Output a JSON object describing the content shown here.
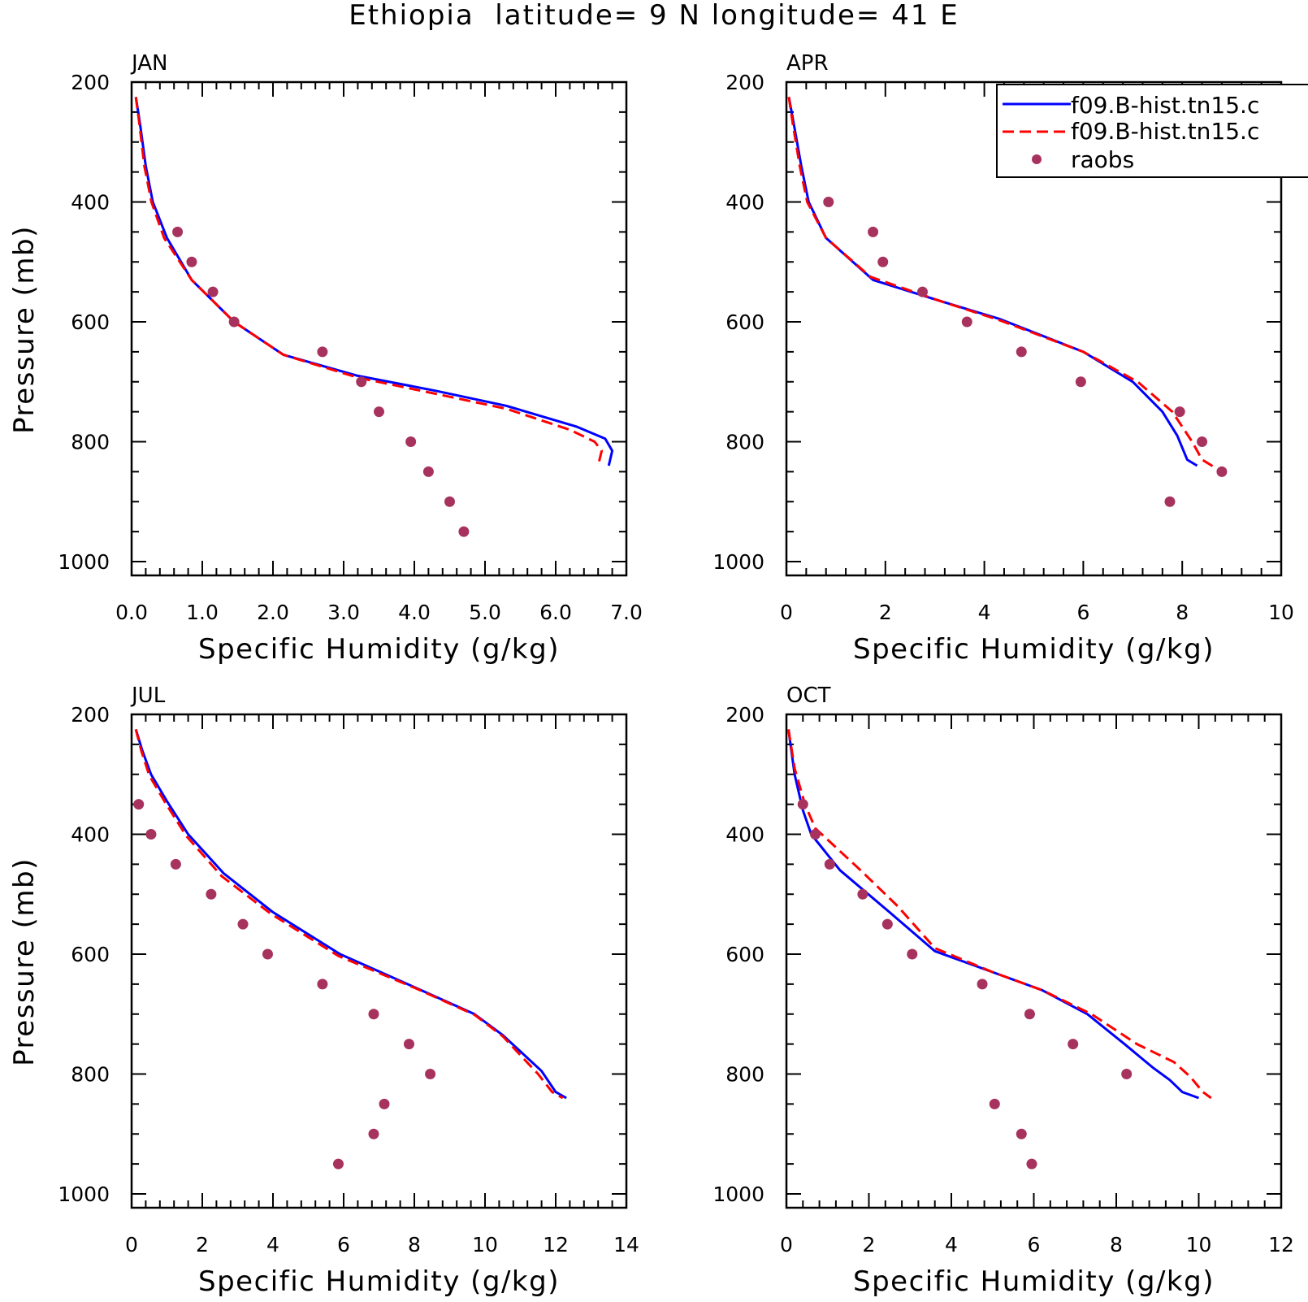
{
  "title": "Ethiopia  latitude= 9 N longitude= 41 E",
  "legend": {
    "entries": [
      {
        "label": "f09.B-hist.tn15.c",
        "color": "#0000ff",
        "style": "solid"
      },
      {
        "label": "f09.B-hist.tn15.c",
        "color": "#ff0000",
        "style": "dashed"
      },
      {
        "label": "raobs",
        "color": "#a8325e",
        "style": "marker"
      }
    ]
  },
  "colors": {
    "series1": "#0000ff",
    "series2": "#ff0000",
    "raobs": "#a8325e"
  },
  "chart_data": [
    {
      "type": "line",
      "panel": "JAN",
      "xlabel": "Specific Humidity (g/kg)",
      "ylabel": "Pressure (mb)",
      "xlim": [
        0,
        7
      ],
      "ylim": [
        1000,
        200
      ],
      "xticks": [
        0,
        1,
        2,
        3,
        4,
        5,
        6,
        7
      ],
      "xtick_labels": [
        "0.0",
        "1.0",
        "2.0",
        "3.0",
        "4.0",
        "5.0",
        "6.0",
        "7.0"
      ],
      "yticks": [
        200,
        400,
        600,
        800,
        1000
      ],
      "ytick_labels": [
        "200",
        "400",
        "600",
        "800",
        "1000"
      ],
      "series": [
        {
          "values": [
            [
              0.06,
              225
            ],
            [
              0.12,
              270
            ],
            [
              0.2,
              340
            ],
            [
              0.3,
              400
            ],
            [
              0.5,
              460
            ],
            [
              0.85,
              530
            ],
            [
              1.45,
              600
            ],
            [
              2.15,
              655
            ],
            [
              3.2,
              690
            ],
            [
              4.3,
              715
            ],
            [
              5.3,
              740
            ],
            [
              6.3,
              775
            ],
            [
              6.7,
              795
            ],
            [
              6.8,
              815
            ],
            [
              6.75,
              840
            ]
          ]
        },
        {
          "values": [
            [
              0.06,
              225
            ],
            [
              0.11,
              270
            ],
            [
              0.18,
              340
            ],
            [
              0.28,
              400
            ],
            [
              0.46,
              460
            ],
            [
              0.85,
              530
            ],
            [
              1.45,
              600
            ],
            [
              2.15,
              655
            ],
            [
              3.2,
              693
            ],
            [
              4.3,
              720
            ],
            [
              5.3,
              745
            ],
            [
              6.2,
              780
            ],
            [
              6.55,
              800
            ],
            [
              6.65,
              815
            ],
            [
              6.6,
              840
            ]
          ]
        },
        {
          "values": [
            [
              0.65,
              450
            ],
            [
              0.85,
              500
            ],
            [
              1.15,
              550
            ],
            [
              1.45,
              600
            ],
            [
              2.7,
              650
            ],
            [
              3.25,
              700
            ],
            [
              3.5,
              750
            ],
            [
              3.95,
              800
            ],
            [
              4.2,
              850
            ],
            [
              4.5,
              900
            ],
            [
              4.7,
              950
            ]
          ]
        }
      ]
    },
    {
      "type": "line",
      "panel": "APR",
      "xlabel": "Specific Humidity (g/kg)",
      "ylabel": "",
      "xlim": [
        0,
        10
      ],
      "ylim": [
        1000,
        200
      ],
      "xticks": [
        0,
        2,
        4,
        6,
        8,
        10
      ],
      "xtick_labels": [
        "0",
        "2",
        "4",
        "6",
        "8",
        "10"
      ],
      "yticks": [
        200,
        400,
        600,
        800,
        1000
      ],
      "ytick_labels": [
        "200",
        "400",
        "600",
        "800",
        "1000"
      ],
      "series": [
        {
          "values": [
            [
              0.05,
              225
            ],
            [
              0.15,
              270
            ],
            [
              0.3,
              340
            ],
            [
              0.45,
              400
            ],
            [
              0.8,
              460
            ],
            [
              1.75,
              530
            ],
            [
              3.1,
              565
            ],
            [
              4.3,
              595
            ],
            [
              6.0,
              650
            ],
            [
              7.0,
              700
            ],
            [
              7.6,
              750
            ],
            [
              7.9,
              790
            ],
            [
              8.1,
              830
            ],
            [
              8.3,
              840
            ]
          ]
        },
        {
          "values": [
            [
              0.05,
              225
            ],
            [
              0.13,
              270
            ],
            [
              0.27,
              340
            ],
            [
              0.42,
              400
            ],
            [
              0.8,
              460
            ],
            [
              1.7,
              525
            ],
            [
              3.1,
              565
            ],
            [
              4.3,
              597
            ],
            [
              6.0,
              650
            ],
            [
              7.1,
              700
            ],
            [
              7.8,
              750
            ],
            [
              8.2,
              800
            ],
            [
              8.4,
              830
            ],
            [
              8.7,
              845
            ]
          ]
        },
        {
          "values": [
            [
              0.85,
              400
            ],
            [
              1.75,
              450
            ],
            [
              1.95,
              500
            ],
            [
              2.75,
              550
            ],
            [
              3.65,
              600
            ],
            [
              4.75,
              650
            ],
            [
              5.95,
              700
            ],
            [
              7.95,
              750
            ],
            [
              8.4,
              800
            ],
            [
              8.8,
              850
            ],
            [
              7.75,
              900
            ]
          ]
        }
      ]
    },
    {
      "type": "line",
      "panel": "JUL",
      "xlabel": "Specific Humidity (g/kg)",
      "ylabel": "Pressure (mb)",
      "xlim": [
        0,
        14
      ],
      "ylim": [
        1000,
        200
      ],
      "xticks": [
        0,
        2,
        4,
        6,
        8,
        10,
        12,
        14
      ],
      "xtick_labels": [
        "0",
        "2",
        "4",
        "6",
        "8",
        "10",
        "12",
        "14"
      ],
      "yticks": [
        200,
        400,
        600,
        800,
        1000
      ],
      "ytick_labels": [
        "200",
        "400",
        "600",
        "800",
        "1000"
      ],
      "series": [
        {
          "values": [
            [
              0.12,
              225
            ],
            [
              0.3,
              260
            ],
            [
              0.55,
              300
            ],
            [
              1.0,
              345
            ],
            [
              1.6,
              400
            ],
            [
              2.6,
              465
            ],
            [
              4.0,
              530
            ],
            [
              5.9,
              600
            ],
            [
              8.0,
              655
            ],
            [
              9.7,
              700
            ],
            [
              10.5,
              735
            ],
            [
              11.6,
              795
            ],
            [
              12.0,
              830
            ],
            [
              12.3,
              840
            ]
          ]
        },
        {
          "values": [
            [
              0.12,
              225
            ],
            [
              0.28,
              262
            ],
            [
              0.5,
              302
            ],
            [
              0.95,
              347
            ],
            [
              1.55,
              403
            ],
            [
              2.55,
              470
            ],
            [
              3.95,
              533
            ],
            [
              5.85,
              603
            ],
            [
              8.0,
              656
            ],
            [
              9.7,
              701
            ],
            [
              10.5,
              737
            ],
            [
              11.5,
              800
            ],
            [
              11.9,
              830
            ],
            [
              12.2,
              840
            ]
          ]
        },
        {
          "values": [
            [
              0.2,
              350
            ],
            [
              0.55,
              400
            ],
            [
              1.25,
              450
            ],
            [
              2.25,
              500
            ],
            [
              3.15,
              550
            ],
            [
              3.85,
              600
            ],
            [
              5.4,
              650
            ],
            [
              6.85,
              700
            ],
            [
              7.85,
              750
            ],
            [
              8.45,
              800
            ],
            [
              7.15,
              850
            ],
            [
              6.85,
              900
            ],
            [
              5.85,
              950
            ]
          ]
        }
      ]
    },
    {
      "type": "line",
      "panel": "OCT",
      "xlabel": "Specific Humidity (g/kg)",
      "ylabel": "",
      "xlim": [
        0,
        12
      ],
      "ylim": [
        1000,
        200
      ],
      "xticks": [
        0,
        2,
        4,
        6,
        8,
        10,
        12
      ],
      "xtick_labels": [
        "0",
        "2",
        "4",
        "6",
        "8",
        "10",
        "12"
      ],
      "yticks": [
        200,
        400,
        600,
        800,
        1000
      ],
      "ytick_labels": [
        "200",
        "400",
        "600",
        "800",
        "1000"
      ],
      "series": [
        {
          "values": [
            [
              0.05,
              225
            ],
            [
              0.2,
              300
            ],
            [
              0.4,
              360
            ],
            [
              0.6,
              400
            ],
            [
              1.3,
              460
            ],
            [
              2.5,
              530
            ],
            [
              3.6,
              595
            ],
            [
              5.0,
              630
            ],
            [
              6.2,
              660
            ],
            [
              7.3,
              700
            ],
            [
              8.2,
              750
            ],
            [
              8.9,
              790
            ],
            [
              9.3,
              810
            ],
            [
              9.6,
              830
            ],
            [
              10.0,
              840
            ]
          ]
        },
        {
          "values": [
            [
              0.05,
              225
            ],
            [
              0.2,
              290
            ],
            [
              0.45,
              350
            ],
            [
              0.7,
              390
            ],
            [
              1.8,
              460
            ],
            [
              2.7,
              520
            ],
            [
              3.6,
              590
            ],
            [
              5.0,
              630
            ],
            [
              6.2,
              660
            ],
            [
              7.4,
              700
            ],
            [
              8.5,
              750
            ],
            [
              9.4,
              780
            ],
            [
              9.8,
              805
            ],
            [
              10.1,
              830
            ],
            [
              10.3,
              840
            ]
          ]
        },
        {
          "values": [
            [
              0.4,
              350
            ],
            [
              0.7,
              400
            ],
            [
              1.05,
              450
            ],
            [
              1.85,
              500
            ],
            [
              2.45,
              550
            ],
            [
              3.05,
              600
            ],
            [
              4.75,
              650
            ],
            [
              5.9,
              700
            ],
            [
              6.95,
              750
            ],
            [
              8.25,
              800
            ],
            [
              5.05,
              850
            ],
            [
              5.7,
              900
            ],
            [
              5.95,
              950
            ]
          ]
        }
      ]
    }
  ]
}
